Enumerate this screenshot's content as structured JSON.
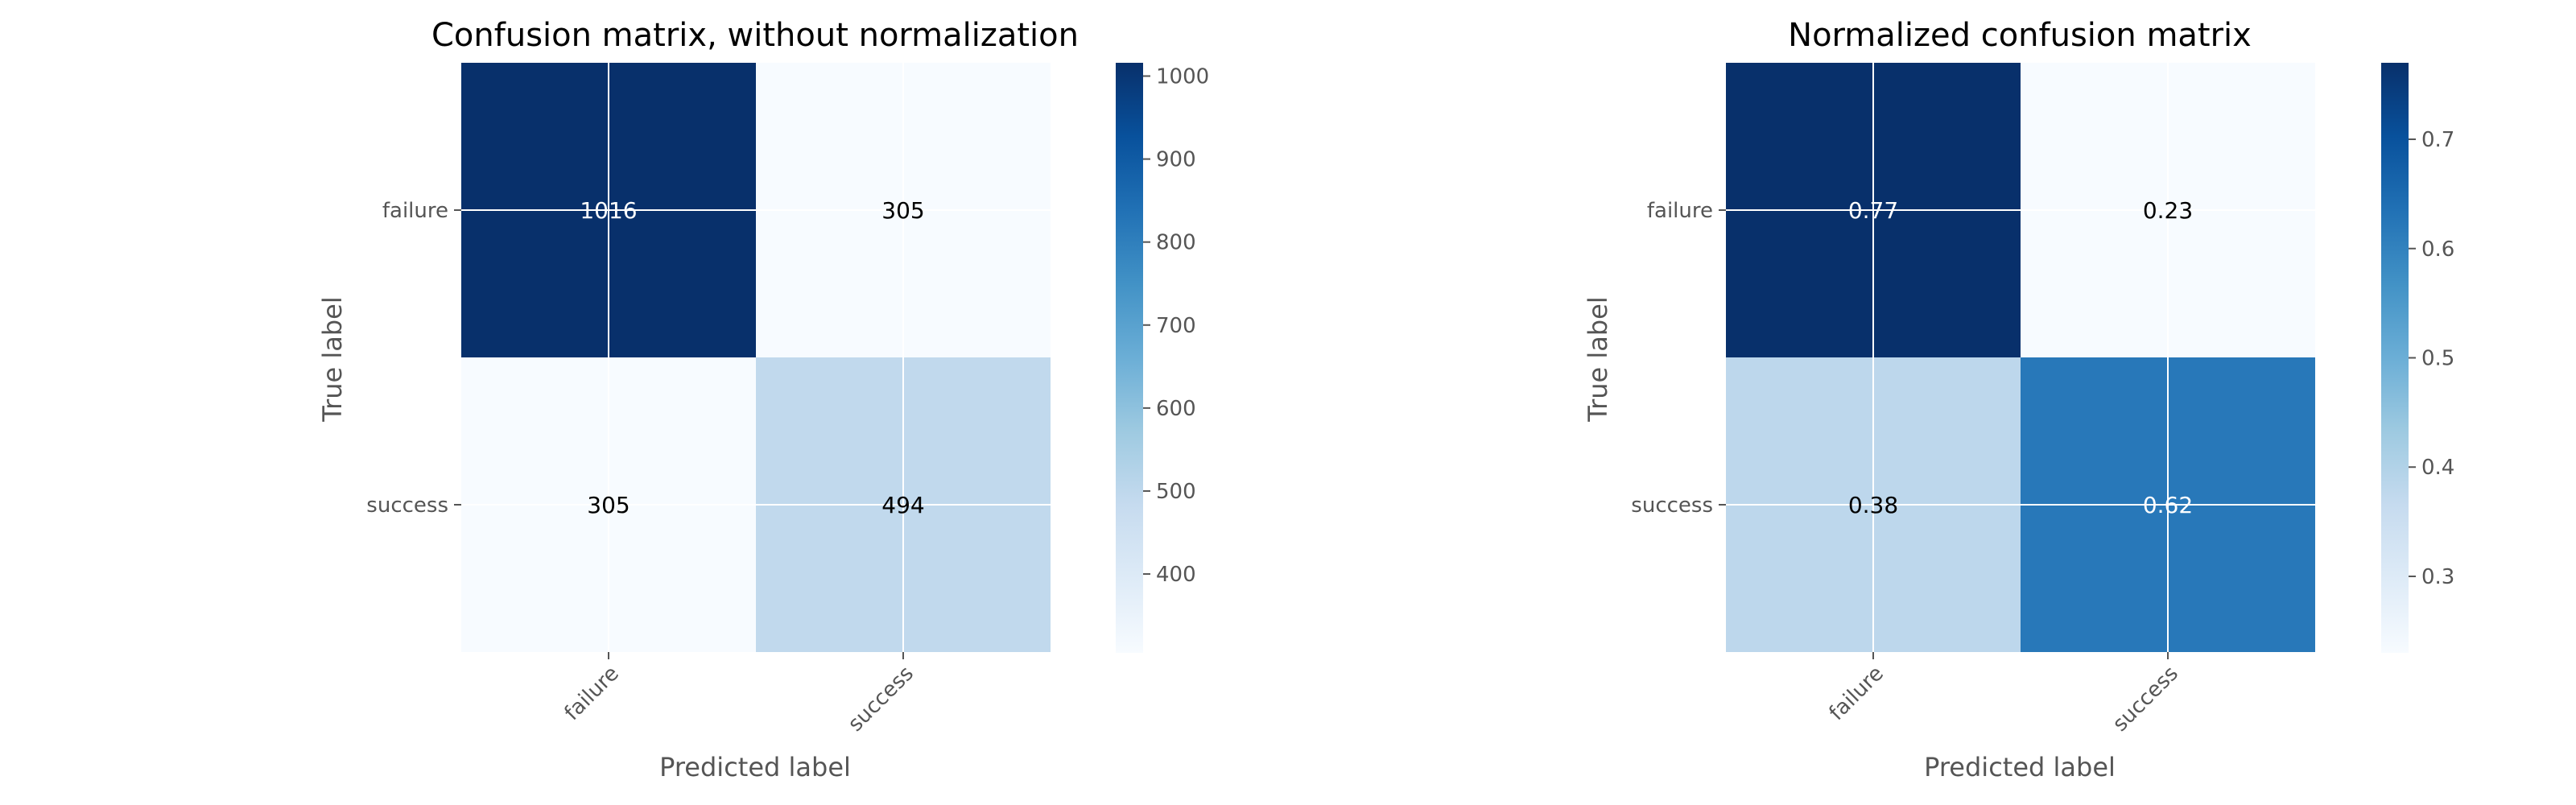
{
  "chart_data": [
    {
      "type": "heatmap",
      "title": "Confusion matrix, without normalization",
      "xlabel": "Predicted label",
      "ylabel": "True label",
      "x_categories": [
        "failure",
        "success"
      ],
      "y_categories": [
        "failure",
        "success"
      ],
      "values": [
        [
          1016,
          305
        ],
        [
          305,
          494
        ]
      ],
      "value_labels": [
        [
          "1016",
          "305"
        ],
        [
          "305",
          "494"
        ]
      ],
      "colorbar": {
        "range": [
          305,
          1016
        ],
        "ticks": [
          400,
          500,
          600,
          700,
          800,
          900,
          1000
        ],
        "tick_labels": [
          "400",
          "500",
          "600",
          "700",
          "800",
          "900",
          "1000"
        ]
      },
      "colormap": "Blues",
      "grid": true
    },
    {
      "type": "heatmap",
      "title": "Normalized confusion matrix",
      "xlabel": "Predicted label",
      "ylabel": "True label",
      "x_categories": [
        "failure",
        "success"
      ],
      "y_categories": [
        "failure",
        "success"
      ],
      "values": [
        [
          0.77,
          0.23
        ],
        [
          0.38,
          0.62
        ]
      ],
      "value_labels": [
        [
          "0.77",
          "0.23"
        ],
        [
          "0.38",
          "0.62"
        ]
      ],
      "colorbar": {
        "range": [
          0.23,
          0.77
        ],
        "ticks": [
          0.3,
          0.4,
          0.5,
          0.6,
          0.7
        ],
        "tick_labels": [
          "0.3",
          "0.4",
          "0.5",
          "0.6",
          "0.7"
        ]
      },
      "colormap": "Blues",
      "grid": true
    }
  ]
}
